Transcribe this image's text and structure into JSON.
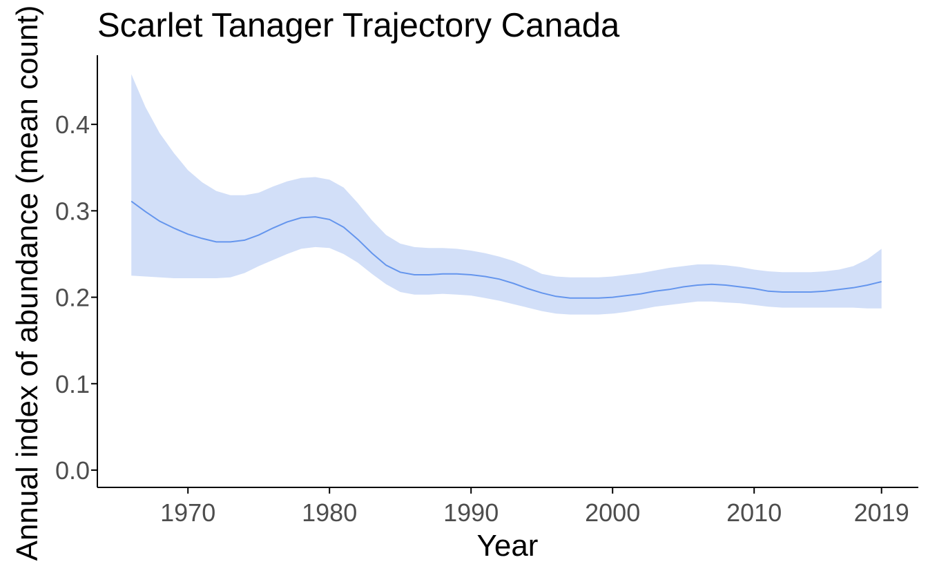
{
  "chart_data": {
    "type": "line",
    "title": "Scarlet Tanager Trajectory Canada",
    "xlabel": "Year",
    "ylabel": "Annual index of abundance (mean count)",
    "x_ticks": [
      1970,
      1980,
      1990,
      2000,
      2010,
      2019
    ],
    "y_ticks": [
      "0.0",
      "0.1",
      "0.2",
      "0.3",
      "0.4"
    ],
    "xlim": [
      1963.6,
      2021.6
    ],
    "ylim": [
      -0.02,
      0.48
    ],
    "grid": false,
    "legend": "none",
    "colors": {
      "line": "#6495ED",
      "ribbon": "#D2DFF8",
      "axis": "#000000",
      "tick_label": "#4D4D4D"
    },
    "series": [
      {
        "x": [
          1966,
          1967,
          1968,
          1969,
          1970,
          1971,
          1972,
          1973,
          1974,
          1975,
          1976,
          1977,
          1978,
          1979,
          1980,
          1981,
          1982,
          1983,
          1984,
          1985,
          1986,
          1987,
          1988,
          1989,
          1990,
          1991,
          1992,
          1993,
          1994,
          1995,
          1996,
          1997,
          1998,
          1999,
          2000,
          2001,
          2002,
          2003,
          2004,
          2005,
          2006,
          2007,
          2008,
          2009,
          2010,
          2011,
          2012,
          2013,
          2014,
          2015,
          2016,
          2017,
          2018,
          2019
        ],
        "y": [
          0.311,
          0.299,
          0.288,
          0.28,
          0.273,
          0.268,
          0.264,
          0.264,
          0.266,
          0.272,
          0.28,
          0.287,
          0.292,
          0.293,
          0.29,
          0.281,
          0.267,
          0.251,
          0.237,
          0.229,
          0.226,
          0.226,
          0.227,
          0.227,
          0.226,
          0.224,
          0.221,
          0.216,
          0.21,
          0.205,
          0.201,
          0.199,
          0.199,
          0.199,
          0.2,
          0.202,
          0.204,
          0.207,
          0.209,
          0.212,
          0.214,
          0.215,
          0.214,
          0.212,
          0.21,
          0.207,
          0.206,
          0.206,
          0.206,
          0.207,
          0.209,
          0.211,
          0.214,
          0.218
        ],
        "lower": [
          0.225,
          0.224,
          0.223,
          0.222,
          0.222,
          0.222,
          0.222,
          0.223,
          0.228,
          0.236,
          0.243,
          0.25,
          0.256,
          0.258,
          0.257,
          0.25,
          0.24,
          0.227,
          0.215,
          0.206,
          0.203,
          0.203,
          0.204,
          0.203,
          0.202,
          0.199,
          0.196,
          0.192,
          0.188,
          0.184,
          0.181,
          0.18,
          0.18,
          0.18,
          0.181,
          0.183,
          0.186,
          0.189,
          0.191,
          0.193,
          0.195,
          0.195,
          0.194,
          0.193,
          0.191,
          0.189,
          0.188,
          0.188,
          0.188,
          0.188,
          0.188,
          0.188,
          0.187,
          0.187
        ],
        "upper": [
          0.458,
          0.42,
          0.39,
          0.367,
          0.347,
          0.333,
          0.323,
          0.318,
          0.318,
          0.321,
          0.328,
          0.334,
          0.338,
          0.339,
          0.336,
          0.327,
          0.309,
          0.289,
          0.272,
          0.262,
          0.258,
          0.257,
          0.257,
          0.256,
          0.254,
          0.251,
          0.247,
          0.242,
          0.235,
          0.227,
          0.224,
          0.223,
          0.223,
          0.223,
          0.224,
          0.226,
          0.228,
          0.231,
          0.234,
          0.236,
          0.238,
          0.238,
          0.237,
          0.235,
          0.232,
          0.23,
          0.229,
          0.229,
          0.229,
          0.23,
          0.232,
          0.236,
          0.244,
          0.256
        ]
      }
    ]
  }
}
